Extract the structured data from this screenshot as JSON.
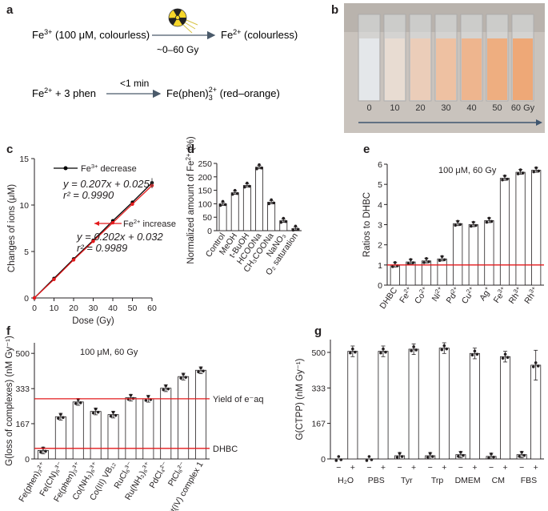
{
  "panels": {
    "a": "a",
    "b": "b",
    "c": "c",
    "d": "d",
    "e": "e",
    "f": "f",
    "g": "g"
  },
  "panel_a": {
    "line1_left": "Fe",
    "line1_left_sup": "3+",
    "line1_left_rest": " (100 μM, colourless)",
    "line1_right": "Fe",
    "line1_right_sup": "2+",
    "line1_right_rest": " (colourless)",
    "dose": "~0–60 Gy",
    "line2_left": "Fe",
    "line2_left_sup": "2+",
    "line2_left_rest": " + 3 phen",
    "time": "<1 min",
    "line2_right": "Fe(phen)",
    "line2_right_sub": "3",
    "line2_right_sup": "2+",
    "line2_right_rest": " (red–orange)",
    "icon": "radiation-icon"
  },
  "panel_b": {
    "labels": [
      "0",
      "10",
      "20",
      "30",
      "40",
      "50",
      "60 Gy"
    ],
    "colors": [
      "#e4e7ea",
      "#e8dcd2",
      "#ebcdb9",
      "#eec1a2",
      "#eeb58e",
      "#eeae80",
      "#eea877"
    ]
  },
  "chart_data": [
    {
      "panel": "c",
      "type": "line",
      "xlabel": "Dose (Gy)",
      "ylabel": "Changes of ions (μM)",
      "xlim": [
        0,
        60
      ],
      "ylim": [
        0,
        15
      ],
      "xticks": [
        "0",
        "10",
        "20",
        "30",
        "40",
        "50",
        "60"
      ],
      "yticks": [
        "0",
        "5",
        "10",
        "15"
      ],
      "x": [
        0,
        10,
        20,
        30,
        40,
        50,
        60
      ],
      "series": [
        {
          "name": "Fe3+ decrease",
          "color": "#000000",
          "values": [
            0,
            2.1,
            4.2,
            6.2,
            8.3,
            10.3,
            12.4
          ],
          "legend_label": "Fe",
          "legend_sup": "3+",
          "legend_rest": " decrease",
          "eq_y": "y = 0.207x + 0.025",
          "eq_r": "r² = 0.9990"
        },
        {
          "name": "Fe2+ increase",
          "color": "#e31a1c",
          "values": [
            0,
            2.0,
            4.1,
            6.1,
            8.1,
            10.1,
            12.1
          ],
          "legend_label": "Fe",
          "legend_sup": "2+",
          "legend_rest": " increase",
          "eq_y": "y = 0.202x + 0.032",
          "eq_r": "r² = 0.9989"
        }
      ]
    },
    {
      "panel": "d",
      "type": "bar",
      "ylabel": "Normalized amount of Fe2+ (%)",
      "ylabel_parts": [
        "Normalized amount of Fe",
        "2+",
        " (%)"
      ],
      "ylim": [
        0,
        250
      ],
      "yticks": [
        "0",
        "50",
        "100",
        "150",
        "200",
        "250"
      ],
      "categories": [
        "Control",
        "MeOH",
        "t-BuOH",
        "HCOONa",
        "CH3COONa",
        "NaNO3",
        "O2 saturation"
      ],
      "values": [
        100,
        141,
        168,
        236,
        106,
        37,
        8
      ]
    },
    {
      "panel": "e",
      "type": "bar",
      "annotation": "100 μM, 60 Gy",
      "ylabel": "Ratios to DHBC",
      "ylim": [
        0,
        6
      ],
      "yticks": [
        "0",
        "1",
        "2",
        "3",
        "4",
        "5",
        "6"
      ],
      "categories": [
        "DHBC",
        "Fe2+",
        "Co2+",
        "Ni2+",
        "Pd2+",
        "Cu2+",
        "Ag+",
        "Fe3+",
        "Rh3+",
        "Rh3+"
      ],
      "values": [
        1.0,
        1.15,
        1.2,
        1.3,
        3.05,
        3.0,
        3.2,
        5.3,
        5.6,
        5.7
      ],
      "refline": 1.0
    },
    {
      "panel": "f",
      "type": "bar",
      "annotation": "100 μM, 60 Gy",
      "ylabel": "G(loss of complexes) (nM Gy−1)",
      "ylim": [
        0,
        550
      ],
      "yticks": [
        "0",
        "167",
        "333",
        "500"
      ],
      "categories": [
        "Fe(phen)3 2+",
        "Fe(CN)6 3−",
        "Fe(phen)3 3+",
        "Co(NH3)6 3+",
        "Co(III) VB12",
        "RuCl6 3−",
        "Ru(NH3)6 3+",
        "PdCl4 2−",
        "PtCl6 2−",
        "Pt(IV) complex 1"
      ],
      "values": [
        40,
        200,
        270,
        225,
        210,
        290,
        285,
        335,
        390,
        420
      ],
      "hlines": [
        {
          "value": 285,
          "label": "Yield of e−aq"
        },
        {
          "value": 50,
          "label": "DHBC"
        }
      ]
    },
    {
      "panel": "g",
      "type": "bar",
      "ylabel": "G(CTPP) (nM Gy−1)",
      "ylim": [
        0,
        560
      ],
      "yticks": [
        "0",
        "167",
        "333",
        "500"
      ],
      "groups": [
        "H2O",
        "PBS",
        "Tyr",
        "Trp",
        "DMEM",
        "CM",
        "FBS"
      ],
      "minus_values": [
        0,
        0,
        15,
        15,
        20,
        12,
        20
      ],
      "plus_values": [
        505,
        505,
        515,
        520,
        495,
        480,
        440
      ],
      "sign_labels": [
        "−",
        "+"
      ]
    }
  ],
  "panel_e_labels": [
    {
      "base": "DHBC",
      "sup": ""
    },
    {
      "base": "Fe",
      "sup": "2+"
    },
    {
      "base": "Co",
      "sup": "2+"
    },
    {
      "base": "Ni",
      "sup": "2+"
    },
    {
      "base": "Pd",
      "sup": "2+"
    },
    {
      "base": "Cu",
      "sup": "2+"
    },
    {
      "base": "Ag",
      "sup": "+"
    },
    {
      "base": "Fe",
      "sup": "3+"
    },
    {
      "base": "Rh",
      "sup": "3+"
    },
    {
      "base": "Rh",
      "sup": "3+"
    }
  ],
  "panel_d_labels": [
    "Control",
    "MeOH",
    "t-BuOH",
    "HCOONa",
    "CH₃COONa",
    "NaNO₃",
    "O₂ saturation"
  ],
  "panel_f_labels": [
    "Fe(phen)₃²⁺",
    "Fe(CN)₆³⁻",
    "Fe(phen)₃³⁺",
    "Co(NH₃)₆³⁺",
    "Co(III) VB₁₂",
    "RuCl₆³⁻",
    "Ru(NH₃)₆³⁺",
    "PdCl₄²⁻",
    "PtCl₆²⁻",
    "Pt(IV) complex 1"
  ],
  "panel_g_labels": [
    "H₂O",
    "PBS",
    "Tyr",
    "Trp",
    "DMEM",
    "CM",
    "FBS"
  ],
  "panel_f_ylabel": "G(loss of complexes) (nM Gy⁻¹)",
  "panel_g_ylabel": "G(CTPP) (nM Gy⁻¹)",
  "panel_f_hline_label1": "Yield of e⁻aq",
  "panel_f_hline_label2": "DHBC"
}
